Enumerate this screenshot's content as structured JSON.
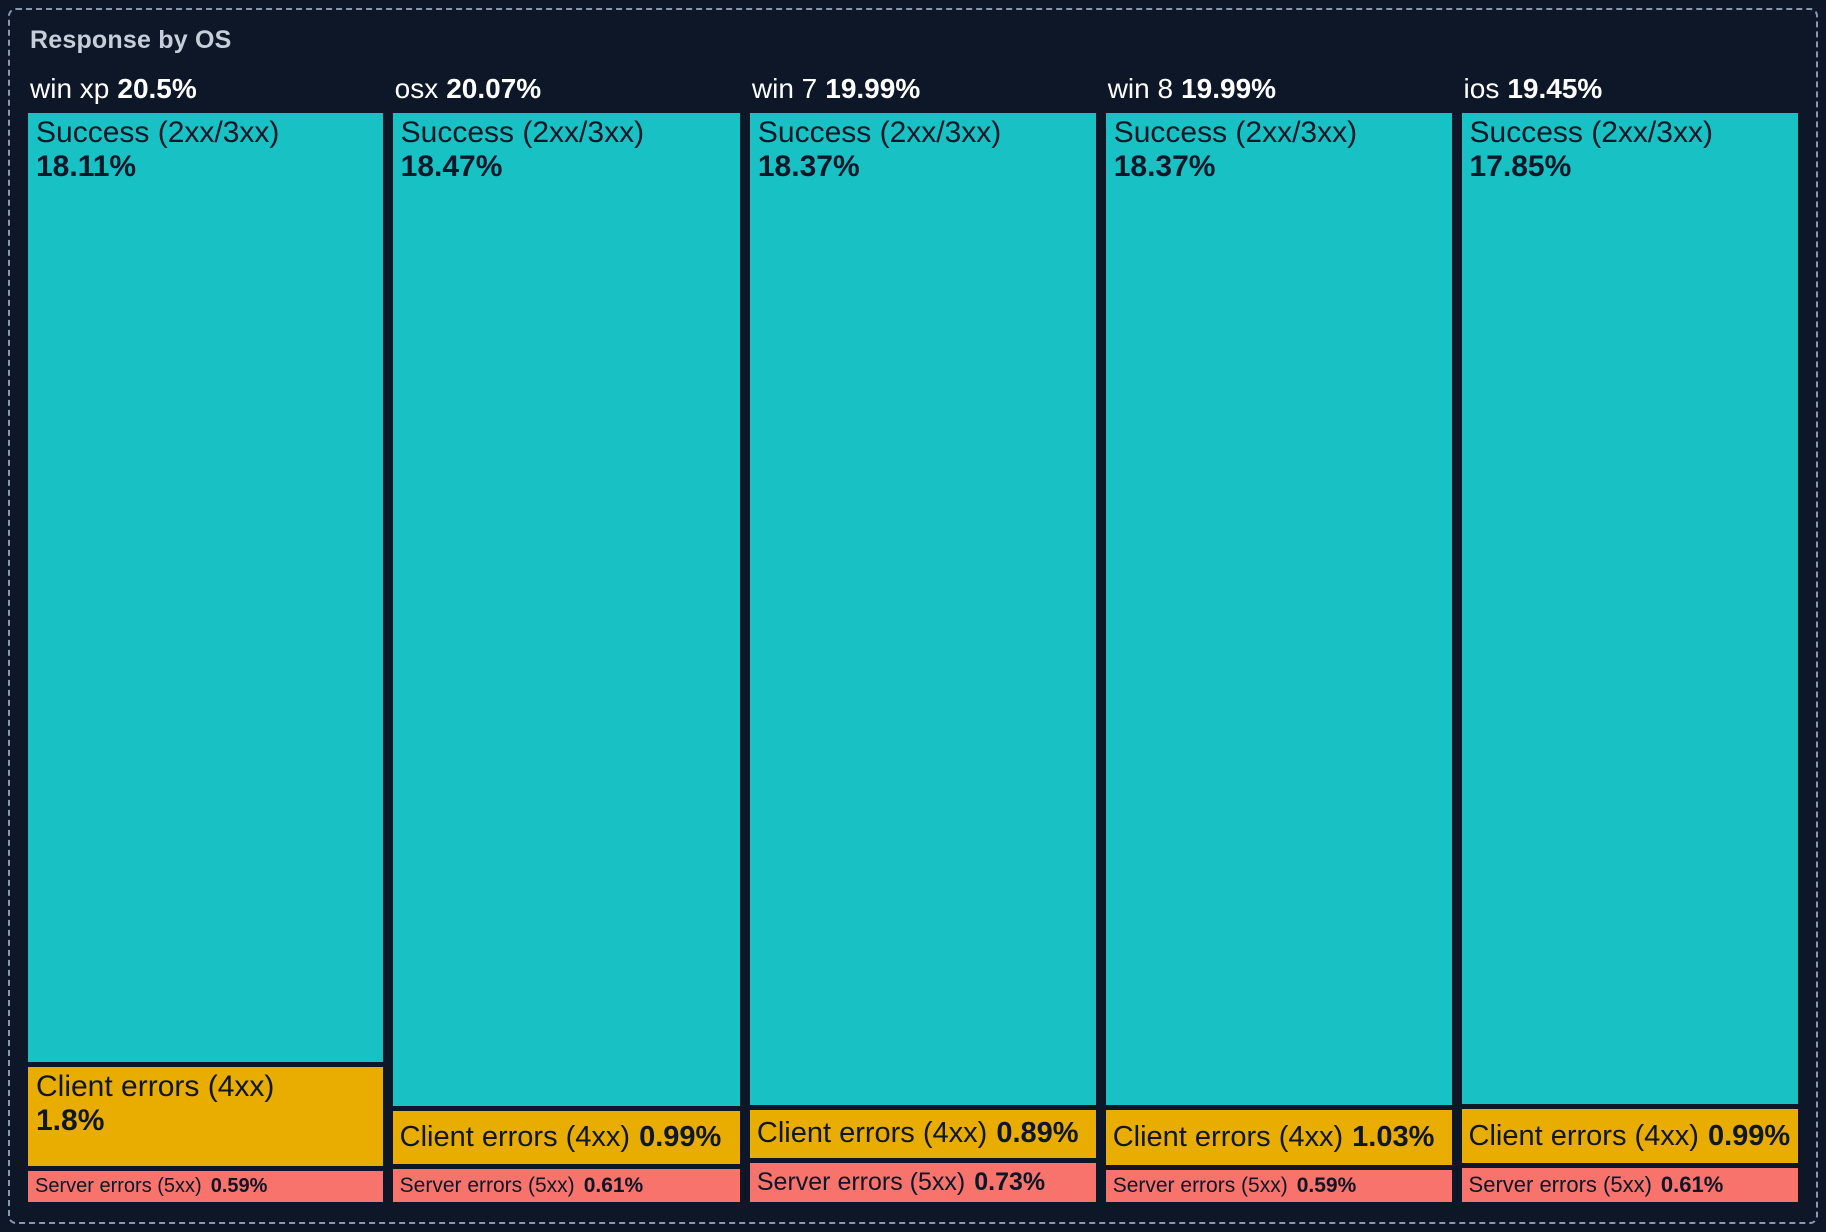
{
  "panel": {
    "title": "Response by OS"
  },
  "colors": {
    "background": "#0d1727",
    "panel_border": "#8898ad",
    "title_text": "#c6ced9",
    "header_text": "#ffffff",
    "cell_text": "#0d1727",
    "success": "#18c1c3",
    "client": "#e9ac00",
    "server": "#f7736c"
  },
  "chart_data": {
    "type": "treemap",
    "title": "Response by OS",
    "layout": "columns-by-group, segment-height-proportional",
    "groups": [
      {
        "name": "win xp",
        "share": 20.5,
        "share_label": "20.5%",
        "segments": [
          {
            "name": "Success (2xx/3xx)",
            "share": 18.11,
            "share_label": "18.11%",
            "kind": "success"
          },
          {
            "name": "Client errors (4xx)",
            "share": 1.8,
            "share_label": "1.8%",
            "kind": "client"
          },
          {
            "name": "Server errors (5xx)",
            "share": 0.59,
            "share_label": "0.59%",
            "kind": "server"
          }
        ]
      },
      {
        "name": "osx",
        "share": 20.07,
        "share_label": "20.07%",
        "segments": [
          {
            "name": "Success (2xx/3xx)",
            "share": 18.47,
            "share_label": "18.47%",
            "kind": "success"
          },
          {
            "name": "Client errors (4xx)",
            "share": 0.99,
            "share_label": "0.99%",
            "kind": "client"
          },
          {
            "name": "Server errors (5xx)",
            "share": 0.61,
            "share_label": "0.61%",
            "kind": "server"
          }
        ]
      },
      {
        "name": "win 7",
        "share": 19.99,
        "share_label": "19.99%",
        "segments": [
          {
            "name": "Success (2xx/3xx)",
            "share": 18.37,
            "share_label": "18.37%",
            "kind": "success"
          },
          {
            "name": "Client errors (4xx)",
            "share": 0.89,
            "share_label": "0.89%",
            "kind": "client"
          },
          {
            "name": "Server errors (5xx)",
            "share": 0.73,
            "share_label": "0.73%",
            "kind": "server"
          }
        ]
      },
      {
        "name": "win 8",
        "share": 19.99,
        "share_label": "19.99%",
        "segments": [
          {
            "name": "Success (2xx/3xx)",
            "share": 18.37,
            "share_label": "18.37%",
            "kind": "success"
          },
          {
            "name": "Client errors (4xx)",
            "share": 1.03,
            "share_label": "1.03%",
            "kind": "client"
          },
          {
            "name": "Server errors (5xx)",
            "share": 0.59,
            "share_label": "0.59%",
            "kind": "server"
          }
        ]
      },
      {
        "name": "ios",
        "share": 19.45,
        "share_label": "19.45%",
        "segments": [
          {
            "name": "Success (2xx/3xx)",
            "share": 17.85,
            "share_label": "17.85%",
            "kind": "success"
          },
          {
            "name": "Client errors (4xx)",
            "share": 0.99,
            "share_label": "0.99%",
            "kind": "client"
          },
          {
            "name": "Server errors (5xx)",
            "share": 0.61,
            "share_label": "0.61%",
            "kind": "server"
          }
        ]
      }
    ]
  }
}
